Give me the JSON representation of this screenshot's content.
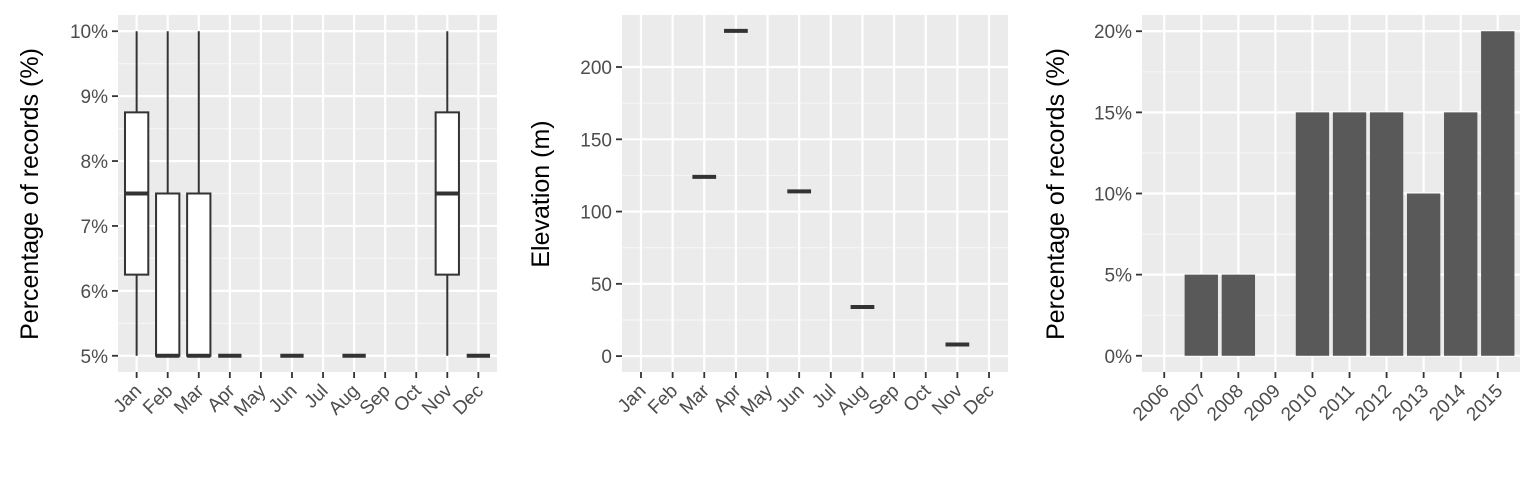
{
  "colors": {
    "panel_bg": "#ebebeb",
    "grid_major": "#ffffff",
    "grid_minor": "#f5f5f5",
    "box_line": "#333333",
    "box_fill": "#ffffff",
    "bar_fill": "#595959",
    "tick": "#333333",
    "tick_label": "#4d4d4d",
    "title": "#000000"
  },
  "chart_data": [
    {
      "type": "box",
      "ylabel": "Percentage of records (%)",
      "categories": [
        "Jan",
        "Feb",
        "Mar",
        "Apr",
        "May",
        "Jun",
        "Jul",
        "Aug",
        "Sep",
        "Oct",
        "Nov",
        "Dec"
      ],
      "yticks": [
        5,
        6,
        7,
        8,
        9,
        10
      ],
      "ytick_labels": [
        "5%",
        "6%",
        "7%",
        "8%",
        "9%",
        "10%"
      ],
      "ylim": [
        4.75,
        10.25
      ],
      "boxes": [
        {
          "category": "Jan",
          "min": 5,
          "q1": 6.25,
          "median": 7.5,
          "q3": 8.75,
          "max": 10
        },
        {
          "category": "Feb",
          "min": 5,
          "q1": 5,
          "median": 5,
          "q3": 7.5,
          "max": 10
        },
        {
          "category": "Mar",
          "min": 5,
          "q1": 5,
          "median": 5,
          "q3": 7.5,
          "max": 10
        },
        {
          "category": "Apr",
          "min": 5,
          "q1": 5,
          "median": 5,
          "q3": 5,
          "max": 5
        },
        {
          "category": "Jun",
          "min": 5,
          "q1": 5,
          "median": 5,
          "q3": 5,
          "max": 5
        },
        {
          "category": "Aug",
          "min": 5,
          "q1": 5,
          "median": 5,
          "q3": 5,
          "max": 5
        },
        {
          "category": "Nov",
          "min": 5,
          "q1": 6.25,
          "median": 7.5,
          "q3": 8.75,
          "max": 10
        },
        {
          "category": "Dec",
          "min": 5,
          "q1": 5,
          "median": 5,
          "q3": 5,
          "max": 5
        }
      ],
      "grid": true
    },
    {
      "type": "box",
      "ylabel": "Elevation (m)",
      "categories": [
        "Jan",
        "Feb",
        "Mar",
        "Apr",
        "May",
        "Jun",
        "Jul",
        "Aug",
        "Sep",
        "Oct",
        "Nov",
        "Dec"
      ],
      "yticks": [
        0,
        50,
        100,
        150,
        200
      ],
      "ytick_labels": [
        "0",
        "50",
        "100",
        "150",
        "200"
      ],
      "ylim": [
        -11,
        236
      ],
      "boxes": [
        {
          "category": "Mar",
          "min": 124,
          "q1": 124,
          "median": 124,
          "q3": 124,
          "max": 124
        },
        {
          "category": "Apr",
          "min": 225,
          "q1": 225,
          "median": 225,
          "q3": 225,
          "max": 225
        },
        {
          "category": "Jun",
          "min": 114,
          "q1": 114,
          "median": 114,
          "q3": 114,
          "max": 114
        },
        {
          "category": "Aug",
          "min": 34,
          "q1": 34,
          "median": 34,
          "q3": 34,
          "max": 34
        },
        {
          "category": "Nov",
          "min": 8,
          "q1": 8,
          "median": 8,
          "q3": 8,
          "max": 8
        }
      ],
      "grid": true
    },
    {
      "type": "bar",
      "ylabel": "Percentage of records (%)",
      "categories": [
        "2006",
        "2007",
        "2008",
        "2009",
        "2010",
        "2011",
        "2012",
        "2013",
        "2014",
        "2015"
      ],
      "values": [
        0,
        5,
        5,
        0,
        15,
        15,
        15,
        10,
        15,
        20
      ],
      "yticks": [
        0,
        5,
        10,
        15,
        20
      ],
      "ytick_labels": [
        "0%",
        "5%",
        "10%",
        "15%",
        "20%"
      ],
      "ylim": [
        -1,
        21
      ],
      "grid": true
    }
  ]
}
